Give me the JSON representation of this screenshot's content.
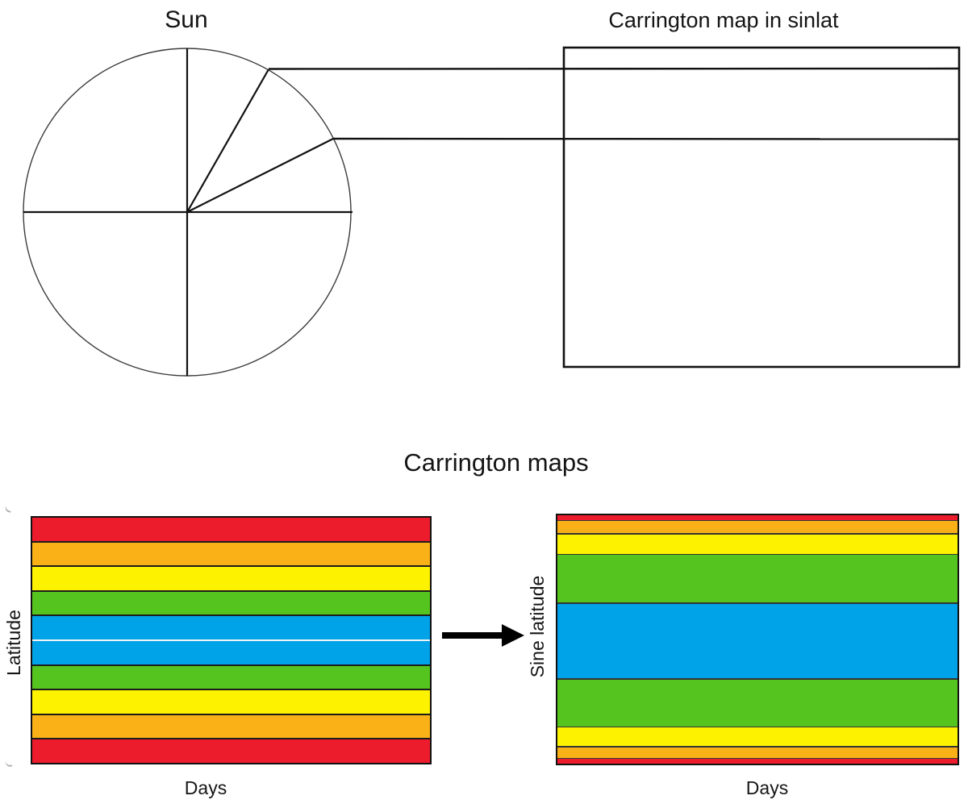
{
  "sun_panel": {
    "title": "Sun"
  },
  "sinlat_panel": {
    "title": "Carrington map in sinlat"
  },
  "maps_section": {
    "title": "Carrington maps"
  },
  "palette": {
    "red": "#ec1c2c",
    "orange": "#f9b117",
    "yellow": "#fdf200",
    "green": "#55c41e",
    "blue": "#00a2e8"
  },
  "line_color": "#111111",
  "circle_color": "#3c3c3c",
  "sun_diagram": {
    "radius_lines_deg": [
      90,
      0,
      60,
      27
    ],
    "mapped_band_boundaries_y": [
      59,
      85,
      172,
      455
    ]
  },
  "left_chart": {
    "name": "latitude-map",
    "ylabel": "Latitude",
    "xlabel": "Days",
    "divider_color": "#1c1c1c",
    "white_divider_after": 4,
    "white_divider_color": "#f4f4f4",
    "bands": [
      {
        "color": "red",
        "weight": 29
      },
      {
        "color": "orange",
        "weight": 29
      },
      {
        "color": "yellow",
        "weight": 29
      },
      {
        "color": "green",
        "weight": 29
      },
      {
        "color": "blue",
        "weight": 29
      },
      {
        "color": "blue",
        "weight": 29
      },
      {
        "color": "green",
        "weight": 29
      },
      {
        "color": "yellow",
        "weight": 29
      },
      {
        "color": "orange",
        "weight": 29
      },
      {
        "color": "red",
        "weight": 29
      }
    ]
  },
  "right_chart": {
    "name": "sine-latitude-map",
    "ylabel": "Sine latitude",
    "xlabel": "Days",
    "divider_color": "#333333",
    "bands": [
      {
        "color": "red",
        "weight": 6
      },
      {
        "color": "orange",
        "weight": 15
      },
      {
        "color": "yellow",
        "weight": 24
      },
      {
        "color": "green",
        "weight": 60
      },
      {
        "color": "blue",
        "weight": 93
      },
      {
        "color": "green",
        "weight": 59
      },
      {
        "color": "yellow",
        "weight": 23
      },
      {
        "color": "orange",
        "weight": 13
      },
      {
        "color": "red",
        "weight": 6
      }
    ]
  }
}
